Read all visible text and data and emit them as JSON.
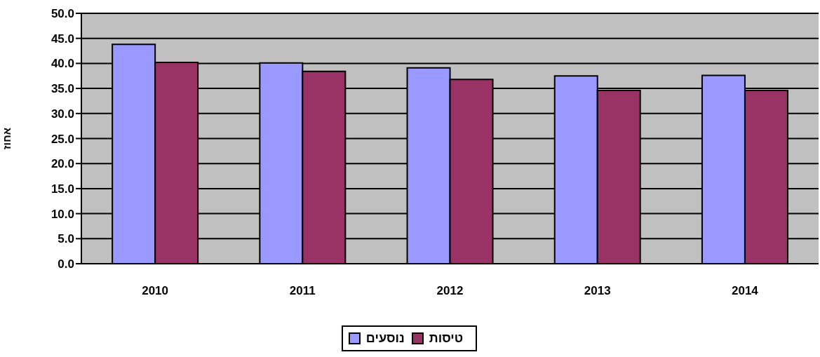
{
  "chart_data": {
    "type": "bar",
    "ylabel": "אחוז",
    "categories": [
      "2010",
      "2011",
      "2012",
      "2013",
      "2014"
    ],
    "series": [
      {
        "name": "נוסעים",
        "color": "#9999ff",
        "values": [
          43.8,
          40.1,
          39.1,
          37.5,
          37.6
        ]
      },
      {
        "name": "טיסות",
        "color": "#993366",
        "values": [
          40.2,
          38.4,
          36.8,
          34.6,
          34.6
        ]
      }
    ],
    "ylim": [
      0,
      50
    ],
    "yticks": [
      {
        "value": 0,
        "label": "0.0"
      },
      {
        "value": 5,
        "label": "5.0"
      },
      {
        "value": 10,
        "label": "10.0"
      },
      {
        "value": 15,
        "label": "15.0"
      },
      {
        "value": 20,
        "label": "20.0"
      },
      {
        "value": 25,
        "label": "25.0"
      },
      {
        "value": 30,
        "label": "30.0"
      },
      {
        "value": 35,
        "label": "35.0"
      },
      {
        "value": 40,
        "label": "40.0"
      },
      {
        "value": 45,
        "label": "45.0"
      },
      {
        "value": 50,
        "label": "50.0"
      }
    ],
    "grid": "y",
    "legend": "bottom"
  }
}
